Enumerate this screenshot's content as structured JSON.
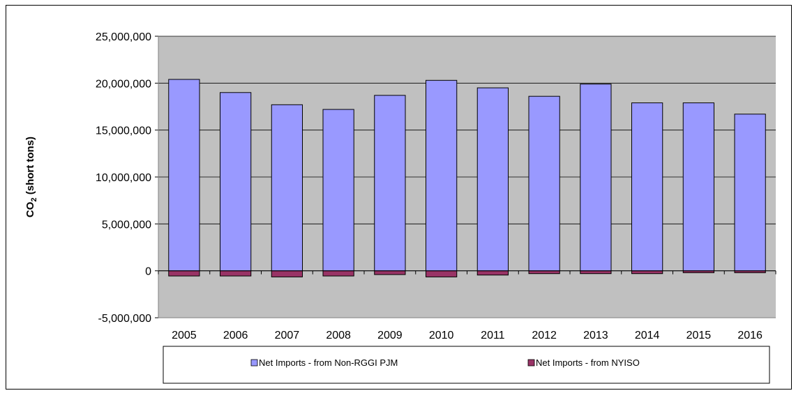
{
  "chart_data": {
    "type": "bar",
    "stacked": true,
    "title": "",
    "xlabel": "",
    "ylabel": {
      "main": "CO",
      "subscript": "2",
      "suffix": " (short tons)"
    },
    "ylim": [
      -5000000,
      25000000
    ],
    "yticks": [
      -5000000,
      0,
      5000000,
      10000000,
      15000000,
      20000000,
      25000000
    ],
    "ytick_labels": [
      "-5,000,000",
      "0",
      "5,000,000",
      "10,000,000",
      "15,000,000",
      "20,000,000",
      "25,000,000"
    ],
    "categories": [
      "2005",
      "2006",
      "2007",
      "2008",
      "2009",
      "2010",
      "2011",
      "2012",
      "2013",
      "2014",
      "2015",
      "2016"
    ],
    "series": [
      {
        "name": "Net Imports - from Non-RGGI PJM",
        "color": "#9999FF",
        "values": [
          20400000,
          19000000,
          17700000,
          17200000,
          18700000,
          20300000,
          19500000,
          18600000,
          19900000,
          17900000,
          17900000,
          16700000
        ]
      },
      {
        "name": "Net Imports - from NYISO",
        "color": "#993366",
        "values": [
          -550000,
          -550000,
          -650000,
          -550000,
          -400000,
          -650000,
          -450000,
          -300000,
          -300000,
          -300000,
          -200000,
          -200000
        ]
      }
    ],
    "grid": true,
    "plot_background": "#C0C0C0",
    "legend_position": "bottom"
  }
}
